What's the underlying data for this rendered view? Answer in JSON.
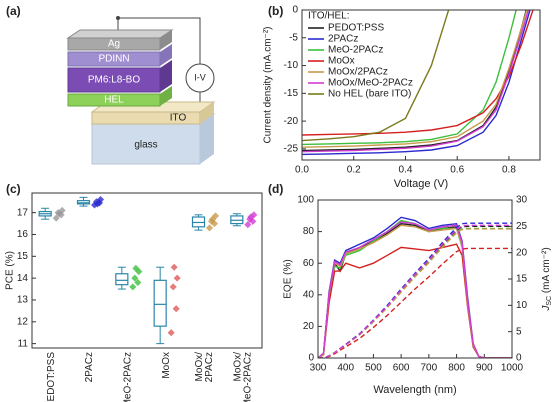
{
  "panel_labels": [
    "(a)",
    "(b)",
    "(c)",
    "(d)"
  ],
  "diagram": {
    "layers": [
      "Ag",
      "PDINN",
      "PM6:L8-BO",
      "HEL",
      "ITO",
      "glass"
    ],
    "meter": "I-V"
  },
  "chart_data": [
    {
      "type": "line",
      "legend_title": "ITO/HEL:",
      "xlabel": "Voltage (V)",
      "ylabel": "Current density (mA.cm⁻²)",
      "x": [
        0,
        0.1,
        0.2,
        0.3,
        0.4,
        0.5,
        0.6,
        0.7,
        0.75,
        0.8,
        0.85,
        0.9
      ],
      "xlim": [
        0,
        0.92
      ],
      "xticks": [
        {
          "value": 0,
          "label": "0.0"
        },
        0.2,
        0.4,
        0.6,
        0.8
      ],
      "ylim": [
        -27,
        0
      ],
      "yticks": [
        -25,
        -20,
        -15,
        -10,
        -5,
        0
      ],
      "legend": "upper left",
      "series": [
        {
          "name": "PEDOT:PSS",
          "color": "#222222",
          "values": [
            -25.3,
            -25.2,
            -25.1,
            -24.9,
            -24.7,
            -24.3,
            -23.5,
            -20.8,
            -17.5,
            -11,
            -3,
            6
          ]
        },
        {
          "name": "2PACz",
          "color": "#2a2ad0",
          "values": [
            -26,
            -25.9,
            -25.8,
            -25.7,
            -25.5,
            -25.2,
            -24.4,
            -22,
            -19,
            -13,
            -5,
            3
          ]
        },
        {
          "name": "MeO-2PACz",
          "color": "#3cbf3c",
          "values": [
            -24.2,
            -24.1,
            -24,
            -23.9,
            -23.7,
            -23.3,
            -22.3,
            -18,
            -13,
            -5,
            4,
            null
          ]
        },
        {
          "name": "MoOx",
          "color": "#d62020",
          "values": [
            -22.5,
            -22.4,
            -22.3,
            -22.2,
            -22,
            -21.6,
            -20.8,
            -18.5,
            -16,
            -12,
            -6,
            1
          ]
        },
        {
          "name": "MoOx/2PACz",
          "color": "#c89a4a",
          "values": [
            -24.7,
            -24.6,
            -24.5,
            -24.3,
            -24.1,
            -23.7,
            -22.8,
            -20,
            -17,
            -10.5,
            -3,
            5
          ]
        },
        {
          "name": "MoOx/MeO-2PACz",
          "color": "#d33cd3",
          "values": [
            -25.5,
            -25.4,
            -25.3,
            -25.1,
            -24.9,
            -24.5,
            -23.6,
            -21,
            -18,
            -11.5,
            -4,
            4
          ]
        },
        {
          "name": "No HEL (bare ITO)",
          "color": "#7a7a1e",
          "values": [
            -23.5,
            -23.2,
            -22.8,
            -22,
            -19.5,
            -10,
            5,
            null,
            null,
            null,
            null,
            null
          ]
        }
      ]
    },
    {
      "type": "box",
      "ylabel": "PCE (%)",
      "categories": [
        "PEDOT:PSS",
        "2PACz",
        "MeO-2PACz",
        "MoOx",
        [
          "MoOx/",
          "2PACz"
        ],
        [
          "MoOx/",
          "MeO-2PACz"
        ]
      ],
      "ylim": [
        10.8,
        17.9
      ],
      "yticks": [
        11,
        12,
        13,
        14,
        15,
        16,
        17
      ],
      "box_color": "#2a86a8",
      "point_colors": [
        "#999999",
        "#2a2ad0",
        "#3cbf3c",
        "#e05a5a",
        "#c89a4a",
        "#d33cd3"
      ],
      "boxes": [
        {
          "min": 16.7,
          "q1": 16.85,
          "median": 16.95,
          "q3": 17.05,
          "max": 17.2,
          "points": [
            16.75,
            16.9,
            17.0,
            17.1,
            16.95
          ]
        },
        {
          "min": 17.3,
          "q1": 17.4,
          "median": 17.45,
          "q3": 17.55,
          "max": 17.7,
          "points": [
            17.35,
            17.45,
            17.5,
            17.6,
            17.4
          ]
        },
        {
          "min": 13.5,
          "q1": 13.7,
          "median": 13.9,
          "q3": 14.2,
          "max": 14.5,
          "points": [
            13.6,
            13.8,
            14.0,
            14.3,
            14.45
          ]
        },
        {
          "min": 11.0,
          "q1": 11.8,
          "median": 12.8,
          "q3": 13.9,
          "max": 14.5,
          "points": [
            11.5,
            12.6,
            13.6,
            14.0,
            14.5
          ]
        },
        {
          "min": 16.2,
          "q1": 16.35,
          "median": 16.55,
          "q3": 16.8,
          "max": 16.9,
          "points": [
            16.3,
            16.5,
            16.6,
            16.85,
            16.7
          ]
        },
        {
          "min": 16.4,
          "q1": 16.5,
          "median": 16.65,
          "q3": 16.85,
          "max": 16.95,
          "points": [
            16.45,
            16.6,
            16.7,
            16.9,
            16.8
          ]
        }
      ]
    },
    {
      "type": "line",
      "xlabel": "Wavelength (nm)",
      "ylabel": "EQE (%)",
      "y2label": [
        "J",
        "SC",
        " (mA cm⁻²)"
      ],
      "x": [
        300,
        320,
        340,
        360,
        380,
        400,
        450,
        500,
        550,
        600,
        650,
        700,
        750,
        800,
        820,
        840,
        860,
        880,
        900,
        1000
      ],
      "xlim": [
        300,
        1000
      ],
      "xticks": [
        300,
        400,
        500,
        600,
        700,
        800,
        900,
        1000
      ],
      "ylim": [
        0,
        100
      ],
      "yticks": [
        0,
        20,
        40,
        60,
        80,
        100
      ],
      "y2lim": [
        0,
        30
      ],
      "y2ticks": [
        0,
        5,
        10,
        15,
        20,
        25,
        30
      ],
      "series": [
        {
          "color": "#222222",
          "values": [
            0,
            3,
            40,
            60,
            55,
            66,
            70,
            74,
            79,
            85,
            84,
            80,
            82,
            83,
            72,
            35,
            8,
            1,
            0,
            0
          ]
        },
        {
          "color": "#2a2ad0",
          "values": [
            0,
            3,
            42,
            62,
            60,
            68,
            72,
            76,
            82,
            89,
            87,
            82,
            84,
            85,
            74,
            38,
            9,
            1,
            0,
            0
          ]
        },
        {
          "color": "#3cbf3c",
          "values": [
            0,
            2,
            38,
            58,
            57,
            65,
            68,
            74,
            80,
            87,
            85,
            81,
            82,
            82,
            70,
            33,
            7,
            1,
            0,
            0
          ]
        },
        {
          "color": "#d62020",
          "values": [
            0,
            2,
            35,
            55,
            55,
            60,
            57,
            60,
            65,
            70,
            69,
            68,
            70,
            72,
            65,
            32,
            7,
            1,
            0,
            0
          ]
        },
        {
          "color": "#c89a4a",
          "values": [
            0,
            2,
            40,
            60,
            58,
            66,
            69,
            73,
            78,
            84,
            83,
            80,
            81,
            82,
            71,
            34,
            8,
            1,
            0,
            0
          ]
        },
        {
          "color": "#d33cd3",
          "values": [
            0,
            3,
            41,
            61,
            59,
            67,
            70,
            75,
            80,
            86,
            85,
            81,
            83,
            84,
            73,
            36,
            9,
            1,
            0,
            0
          ]
        },
        {
          "color": "#222222",
          "axis": "y2",
          "dash": true,
          "values": [
            0,
            0,
            0.4,
            1,
            1.8,
            2.5,
            4.5,
            7,
            9.8,
            12.8,
            15.8,
            18.5,
            21.5,
            24.3,
            24.9,
            25,
            25,
            25,
            25,
            25
          ]
        },
        {
          "color": "#2a2ad0",
          "axis": "y2",
          "dash": true,
          "values": [
            0,
            0,
            0.4,
            1,
            1.8,
            2.6,
            4.6,
            7.2,
            10,
            13.1,
            16.1,
            18.9,
            22,
            24.8,
            25.5,
            25.6,
            25.6,
            25.6,
            25.6,
            25.6
          ]
        },
        {
          "color": "#3cbf3c",
          "axis": "y2",
          "dash": true,
          "values": [
            0,
            0,
            0.4,
            1,
            1.7,
            2.5,
            4.4,
            6.9,
            9.6,
            12.5,
            15.5,
            18.2,
            21.2,
            23.9,
            24.5,
            24.6,
            24.6,
            24.6,
            24.6,
            24.6
          ]
        },
        {
          "color": "#d62020",
          "axis": "y2",
          "dash": true,
          "values": [
            0,
            0,
            0.3,
            0.8,
            1.5,
            2.1,
            3.7,
            5.8,
            8.1,
            10.6,
            13.1,
            15.4,
            17.9,
            20.2,
            20.7,
            20.8,
            20.8,
            20.8,
            20.8,
            20.8
          ]
        },
        {
          "color": "#c89a4a",
          "axis": "y2",
          "dash": true,
          "values": [
            0,
            0,
            0.4,
            1,
            1.7,
            2.5,
            4.4,
            6.9,
            9.6,
            12.5,
            15.4,
            18.1,
            21.1,
            23.8,
            24.4,
            24.5,
            24.5,
            24.5,
            24.5,
            24.5
          ]
        },
        {
          "color": "#d33cd3",
          "axis": "y2",
          "dash": true,
          "values": [
            0,
            0,
            0.4,
            1,
            1.8,
            2.5,
            4.5,
            7.1,
            9.8,
            12.9,
            15.9,
            18.6,
            21.7,
            24.4,
            25.1,
            25.2,
            25.2,
            25.2,
            25.2,
            25.2
          ]
        }
      ]
    }
  ]
}
